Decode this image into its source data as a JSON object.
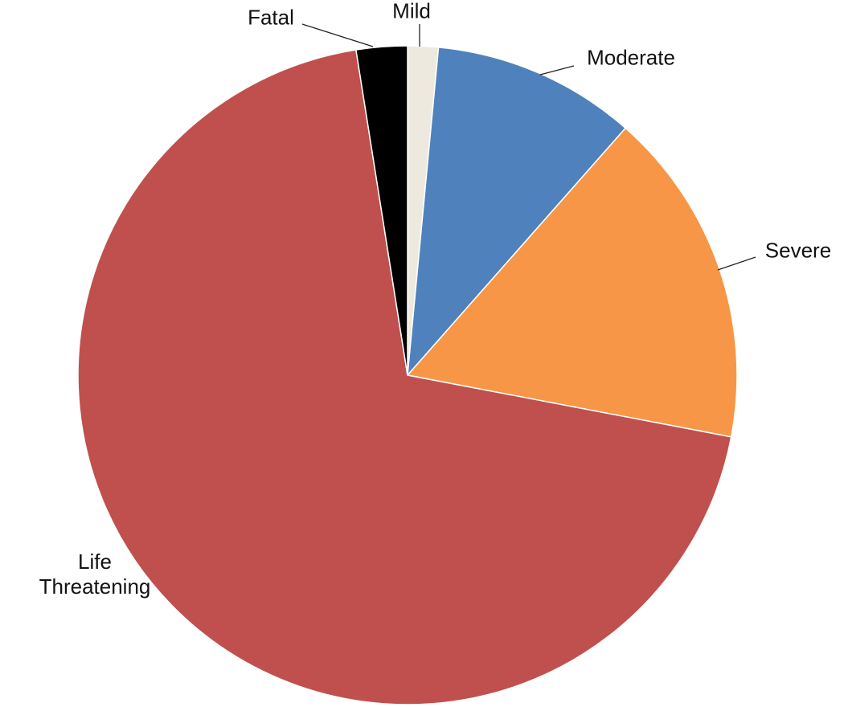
{
  "chart_data": {
    "type": "pie",
    "categories": [
      "Mild",
      "Moderate",
      "Severe",
      "Life Threatening",
      "Fatal"
    ],
    "values": [
      1.5,
      10,
      16.5,
      69.5,
      2.5
    ],
    "colors": [
      "#ede9df",
      "#4f81bd",
      "#f79646",
      "#c0504d",
      "#000000"
    ]
  }
}
